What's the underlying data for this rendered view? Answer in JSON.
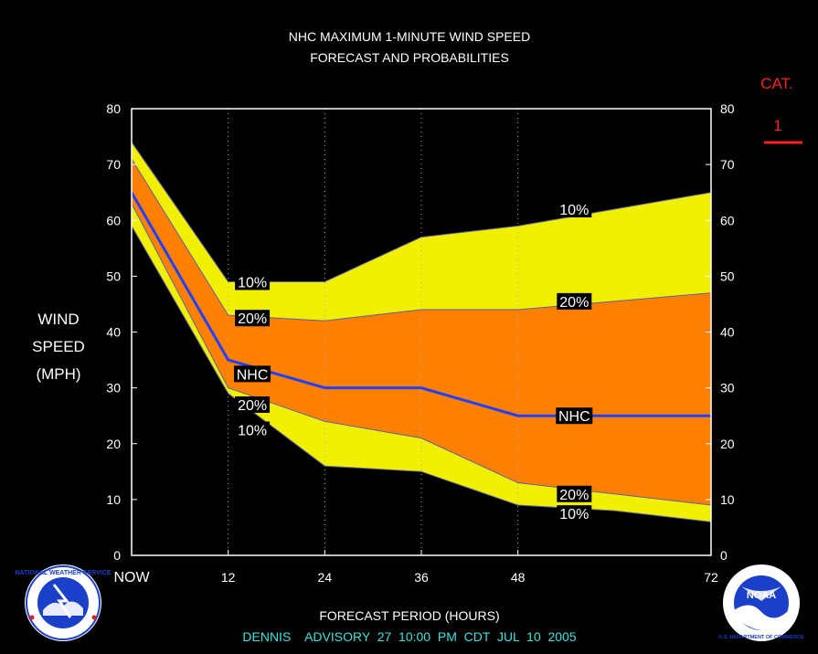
{
  "chart_data": {
    "type": "area",
    "title": "NHC MAXIMUM 1-MINUTE WIND SPEED",
    "subtitle": "FORECAST AND PROBABILITIES",
    "xlabel": "FORECAST PERIOD (HOURS)",
    "ylabel_lines": [
      "WIND",
      "SPEED",
      "(MPH)"
    ],
    "x_ticks": [
      "NOW",
      "12",
      "24",
      "36",
      "48",
      "72"
    ],
    "x_tick_values": [
      0,
      12,
      24,
      36,
      48,
      72
    ],
    "xlim": [
      0,
      72
    ],
    "ylim": [
      0,
      80
    ],
    "y_ticks": [
      0,
      10,
      20,
      30,
      40,
      50,
      60,
      70,
      80
    ],
    "x": [
      0,
      12,
      24,
      36,
      48,
      60,
      72
    ],
    "upper10": [
      74,
      49,
      49,
      57,
      59,
      62,
      65
    ],
    "upper20": [
      71,
      43,
      42,
      44,
      44,
      45.5,
      47
    ],
    "nhc": [
      65,
      35,
      30,
      30,
      25,
      25,
      25
    ],
    "lower20": [
      63,
      30,
      24,
      21,
      13,
      11,
      9
    ],
    "lower10": [
      59,
      29,
      16,
      15,
      9,
      8,
      6
    ],
    "labels": [
      {
        "text": "10%",
        "x": 15,
        "y": 49
      },
      {
        "text": "20%",
        "x": 15,
        "y": 42.5
      },
      {
        "text": "NHC",
        "x": 15,
        "y": 32.5
      },
      {
        "text": "20%",
        "x": 15,
        "y": 27
      },
      {
        "text": "10%",
        "x": 15,
        "y": 22.5
      },
      {
        "text": "10%",
        "x": 55,
        "y": 62
      },
      {
        "text": "20%",
        "x": 55,
        "y": 45.5
      },
      {
        "text": "NHC",
        "x": 55,
        "y": 25
      },
      {
        "text": "20%",
        "x": 55,
        "y": 11
      },
      {
        "text": "10%",
        "x": 55,
        "y": 7.5
      }
    ],
    "grid_x_dotted": true,
    "colors": {
      "yellow": "#f0f000",
      "orange": "#ff8000",
      "nhc_line": "#2040ff",
      "background": "#000000"
    }
  },
  "category": {
    "label": "CAT.",
    "value": "1",
    "color": "#ff2020"
  },
  "footer": {
    "advisory": "DENNIS    ADVISORY  27  10:00  PM  CDT  JUL  10  2005",
    "color": "#40e0e0"
  },
  "logos": {
    "left_icon": "nws-logo-icon",
    "right_icon": "noaa-logo-icon",
    "left_text": "NATIONAL WEATHER SERVICE",
    "right_text": "U.S. DEPARTMENT OF COMMERCE",
    "noaa_text": "NOAA"
  }
}
